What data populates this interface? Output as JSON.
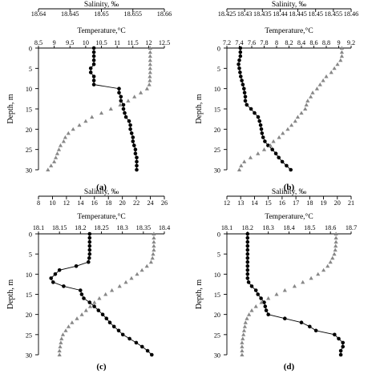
{
  "chart_data": [
    {
      "panel": "(a)",
      "type": "line",
      "ylabel": "Depth, m",
      "ylim": [
        0,
        30
      ],
      "yticks": [
        0,
        5,
        10,
        15,
        20,
        25,
        30
      ],
      "top_axis": {
        "label": "Salinity, ‰",
        "range": [
          18.64,
          18.66
        ],
        "ticks": [
          "18.64",
          "18.645",
          "18.65",
          "18.655",
          "18.66"
        ]
      },
      "bottom_axis": {
        "label": "Temperature,°C",
        "range": [
          8.5,
          12.5
        ],
        "ticks": [
          "8.5",
          "9",
          "9.5",
          "10",
          "10.5",
          "11",
          "11.5",
          "12",
          "12.5"
        ]
      },
      "series": [
        {
          "marker": "circle",
          "color": "#000000",
          "axis": "top",
          "x": [
            18.6488,
            18.6488,
            18.6488,
            18.6488,
            18.6488,
            18.6483,
            18.6483,
            18.6488,
            18.6488,
            18.6488,
            18.6528,
            18.6528,
            18.6531,
            18.6531,
            18.6535,
            18.6535,
            18.6537,
            18.6539,
            18.6544,
            18.6546,
            18.6546,
            18.6548,
            18.655,
            18.655,
            18.6552,
            18.6554,
            18.6554,
            18.6556,
            18.6556,
            18.6556,
            18.6556
          ],
          "y": [
            0,
            1,
            2,
            3,
            4,
            5,
            6,
            7,
            8,
            9,
            10,
            11,
            12,
            13,
            14,
            15,
            16,
            17,
            18,
            19,
            20,
            21,
            22,
            23,
            24,
            25,
            26,
            27,
            28,
            29,
            30
          ]
        },
        {
          "marker": "triangle",
          "color": "#888888",
          "axis": "bottom",
          "x": [
            12.05,
            12.05,
            12.05,
            12.05,
            12.05,
            12.05,
            12.05,
            12.04,
            12.04,
            12.02,
            11.95,
            11.75,
            11.55,
            11.35,
            11.1,
            10.8,
            10.5,
            10.2,
            10.0,
            9.8,
            9.6,
            9.45,
            9.35,
            9.3,
            9.2,
            9.15,
            9.1,
            9.05,
            9.0,
            8.9,
            8.8
          ],
          "y": [
            0,
            1,
            2,
            3,
            4,
            5,
            6,
            7,
            8,
            9,
            10,
            11,
            12,
            13,
            14,
            15,
            16,
            17,
            18,
            19,
            20,
            21,
            22,
            23,
            24,
            25,
            26,
            27,
            28,
            29,
            30
          ]
        }
      ]
    },
    {
      "panel": "(b)",
      "type": "line",
      "ylabel": "Depth, m",
      "ylim": [
        0,
        30
      ],
      "yticks": [
        0,
        5,
        10,
        15,
        20,
        25,
        30
      ],
      "top_axis": {
        "label": "Salinity, ‰",
        "range": [
          18.425,
          18.46
        ],
        "ticks": [
          "18.425",
          "18.43",
          "18.435",
          "18.44",
          "18.445",
          "18.45",
          "18.455",
          "18.46"
        ]
      },
      "bottom_axis": {
        "label": "Temperature,°C",
        "range": [
          7.2,
          9.2
        ],
        "ticks": [
          "7.2",
          "7.4",
          "7.6",
          "7.8",
          "8",
          "8.2",
          "8.4",
          "8.6",
          "8.8",
          "9",
          "9.2"
        ]
      },
      "series": [
        {
          "marker": "circle",
          "color": "#000000",
          "axis": "top",
          "x": [
            18.4288,
            18.4288,
            18.4288,
            18.4285,
            18.4283,
            18.4285,
            18.4287,
            18.4289,
            18.4292,
            18.4295,
            18.4298,
            18.43,
            18.4302,
            18.4302,
            18.4306,
            18.4318,
            18.4328,
            18.4338,
            18.4342,
            18.4345,
            18.4347,
            18.4349,
            18.4352,
            18.4357,
            18.4366,
            18.4378,
            18.4388,
            18.4396,
            18.4406,
            18.4418,
            18.443
          ],
          "y": [
            0,
            1,
            2,
            3,
            4,
            5,
            6,
            7,
            8,
            9,
            10,
            11,
            12,
            13,
            14,
            15,
            16,
            17,
            18,
            19,
            20,
            21,
            22,
            23,
            24,
            25,
            26,
            27,
            28,
            29,
            30
          ]
        },
        {
          "marker": "triangle",
          "color": "#888888",
          "axis": "bottom",
          "x": [
            9.05,
            9.05,
            9.05,
            9.03,
            8.98,
            8.93,
            8.88,
            8.8,
            8.75,
            8.7,
            8.65,
            8.58,
            8.55,
            8.5,
            8.48,
            8.46,
            8.4,
            8.34,
            8.3,
            8.24,
            8.18,
            8.1,
            8.04,
            7.95,
            7.9,
            7.8,
            7.7,
            7.58,
            7.48,
            7.43,
            7.4
          ],
          "y": [
            0,
            1,
            2,
            3,
            4,
            5,
            6,
            7,
            8,
            9,
            10,
            11,
            12,
            13,
            14,
            15,
            16,
            17,
            18,
            19,
            20,
            21,
            22,
            23,
            24,
            25,
            26,
            27,
            28,
            29,
            30
          ]
        }
      ]
    },
    {
      "panel": "(c)",
      "type": "line",
      "ylabel": "Depth, m",
      "ylim": [
        0,
        30
      ],
      "yticks": [
        0,
        5,
        10,
        15,
        20,
        25,
        30
      ],
      "top_axis": {
        "label": "Salinity, ‰",
        "range": [
          8,
          26
        ],
        "ticks": [
          "8",
          "10",
          "12",
          "14",
          "16",
          "18",
          "20",
          "22",
          "24",
          "26"
        ]
      },
      "bottom_axis": {
        "label": "Temperature,°C",
        "range": [
          18.1,
          18.4
        ],
        "ticks": [
          "18.1",
          "18.15",
          "18.2",
          "18.25",
          "18.3",
          "18.35",
          "18.4"
        ]
      },
      "series": [
        {
          "marker": "circle",
          "color": "#000000",
          "axis": "bottom",
          "x": [
            18.222,
            18.222,
            18.222,
            18.222,
            18.222,
            18.222,
            18.221,
            18.219,
            18.19,
            18.15,
            18.14,
            18.13,
            18.135,
            18.16,
            18.2,
            18.203,
            18.208,
            18.222,
            18.233,
            18.243,
            18.253,
            18.262,
            18.27,
            18.28,
            18.291,
            18.301,
            18.317,
            18.333,
            18.347,
            18.36,
            18.37
          ],
          "y": [
            0,
            1,
            2,
            3,
            4,
            5,
            6,
            7,
            8,
            9,
            10,
            11,
            12,
            13,
            14,
            15,
            16,
            17,
            18,
            19,
            20,
            21,
            22,
            23,
            24,
            25,
            26,
            27,
            28,
            29,
            30
          ]
        },
        {
          "marker": "triangle",
          "color": "#888888",
          "axis": "top",
          "x": [
            24.5,
            24.5,
            24.5,
            24.5,
            24.5,
            24.4,
            24.3,
            24.1,
            23.5,
            22.8,
            22.1,
            21.3,
            20.5,
            19.6,
            18.5,
            17.6,
            16.7,
            16.0,
            15.4,
            14.8,
            14.2,
            13.5,
            12.8,
            12.3,
            11.9,
            11.5,
            11.3,
            11.2,
            11.1,
            11.0,
            11.0
          ],
          "y": [
            0,
            1,
            2,
            3,
            4,
            5,
            6,
            7,
            8,
            9,
            10,
            11,
            12,
            13,
            14,
            15,
            16,
            17,
            18,
            19,
            20,
            21,
            22,
            23,
            24,
            25,
            26,
            27,
            28,
            29,
            30
          ]
        }
      ]
    },
    {
      "panel": "(d)",
      "type": "line",
      "ylabel": "Depth, m",
      "ylim": [
        0,
        30
      ],
      "yticks": [
        0,
        5,
        10,
        15,
        20,
        25,
        30
      ],
      "top_axis": {
        "label": "Salinity, ‰",
        "range": [
          12,
          21
        ],
        "ticks": [
          "12",
          "13",
          "14",
          "15",
          "16",
          "17",
          "18",
          "19",
          "20",
          "21"
        ]
      },
      "bottom_axis": {
        "label": "Temperature,°C",
        "range": [
          18.1,
          18.7
        ],
        "ticks": [
          "18.1",
          "18.2",
          "18.3",
          "18.4",
          "18.5",
          "18.6",
          "18.7"
        ]
      },
      "series": [
        {
          "marker": "circle",
          "color": "#000000",
          "axis": "bottom",
          "x": [
            18.2,
            18.2,
            18.2,
            18.2,
            18.2,
            18.2,
            18.2,
            18.2,
            18.2,
            18.2,
            18.2,
            18.2,
            18.205,
            18.22,
            18.24,
            18.25,
            18.265,
            18.28,
            18.285,
            18.29,
            18.3,
            18.38,
            18.46,
            18.5,
            18.53,
            18.62,
            18.64,
            18.66,
            18.66,
            18.65,
            18.65
          ],
          "y": [
            0,
            1,
            2,
            3,
            4,
            5,
            6,
            7,
            8,
            9,
            10,
            11,
            12,
            13,
            14,
            15,
            16,
            17,
            18,
            19,
            20,
            21,
            22,
            23,
            24,
            25,
            26,
            27,
            28,
            29,
            30
          ]
        },
        {
          "marker": "triangle",
          "color": "#888888",
          "axis": "top",
          "x": [
            19.9,
            19.9,
            19.9,
            19.88,
            19.85,
            19.78,
            19.65,
            19.5,
            19.3,
            19.0,
            18.6,
            18.1,
            17.5,
            16.9,
            16.2,
            15.6,
            15.0,
            14.5,
            14.1,
            13.8,
            13.6,
            13.45,
            13.35,
            13.3,
            13.25,
            13.2,
            13.15,
            13.1,
            13.1,
            13.1,
            13.1
          ],
          "y": [
            0,
            1,
            2,
            3,
            4,
            5,
            6,
            7,
            8,
            9,
            10,
            11,
            12,
            13,
            14,
            15,
            16,
            17,
            18,
            19,
            20,
            21,
            22,
            23,
            24,
            25,
            26,
            27,
            28,
            29,
            30
          ]
        }
      ]
    }
  ]
}
